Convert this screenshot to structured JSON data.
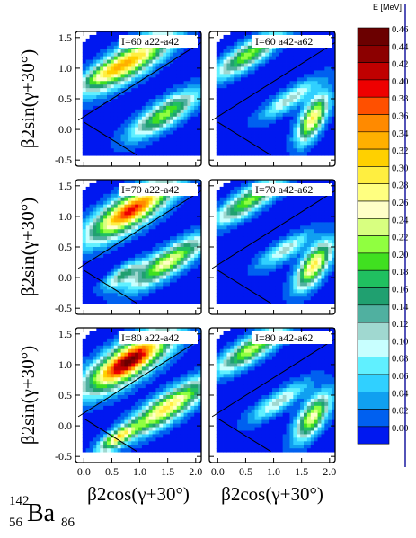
{
  "chart_data": {
    "type": "heatmap",
    "panels": [
      {
        "label": "I=60 a22-a42",
        "row": 0,
        "col": 0
      },
      {
        "label": "I=60 a42-a62",
        "row": 0,
        "col": 1
      },
      {
        "label": "I=70 a22-a42",
        "row": 1,
        "col": 0
      },
      {
        "label": "I=70 a42-a62",
        "row": 1,
        "col": 1
      },
      {
        "label": "I=80 a22-a42",
        "row": 2,
        "col": 0
      },
      {
        "label": "I=80 a42-a62",
        "row": 2,
        "col": 1
      }
    ],
    "xlabel": "β2cos(γ+30°)",
    "ylabel": "β2sin(γ+30°)",
    "xlim": [
      -0.15,
      2.1
    ],
    "ylim": [
      -0.6,
      1.6
    ],
    "xticks": [
      "0.0",
      "0.5",
      "1.0",
      "1.5",
      "2.0"
    ],
    "yticks": [
      "-0.5",
      "0.0",
      "0.5",
      "1.0",
      "1.5"
    ],
    "colorbar": {
      "title": "E [MeV]",
      "levels": [
        "0.46",
        "0.44",
        "0.42",
        "0.40",
        "0.38",
        "0.36",
        "0.34",
        "0.32",
        "0.30",
        "0.28",
        "0.26",
        "0.24",
        "0.22",
        "0.20",
        "0.18",
        "0.16",
        "0.14",
        "0.12",
        "0.10",
        "0.08",
        "0.06",
        "0.04",
        "0.02",
        "0.00"
      ],
      "colors": [
        "#6b0000",
        "#8c0000",
        "#c00000",
        "#ee0000",
        "#ff5000",
        "#ff8a00",
        "#ffb000",
        "#ffd000",
        "#ffee40",
        "#ffff80",
        "#ffffc8",
        "#d8ff80",
        "#90ff40",
        "#40e020",
        "#20c060",
        "#20a070",
        "#50b0a0",
        "#a0d8d0",
        "#c8ffff",
        "#60f0ff",
        "#30d0ff",
        "#10a0f0",
        "#0060f0",
        "#0018f0"
      ]
    }
  },
  "nucleus": {
    "mass": "142",
    "proton": "56",
    "symbol": "Ba",
    "neutron": "86"
  }
}
